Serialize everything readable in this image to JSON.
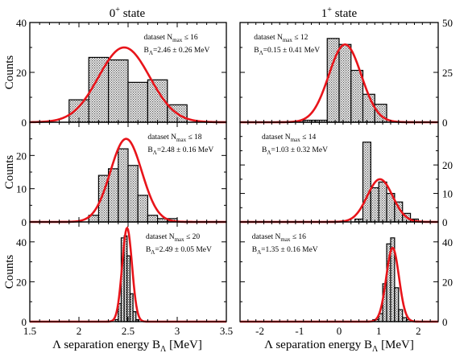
{
  "colors": {
    "fit_curve": "#e8141a",
    "bar_stroke": "#000000",
    "bar_fill": "#d9d9d9",
    "frame": "#000000"
  },
  "columns": [
    {
      "title": "0",
      "title_sup": "+",
      "title_rest": " state"
    },
    {
      "title": "1",
      "title_sup": "+",
      "title_rest": " state"
    }
  ],
  "shared": {
    "ylabel": "Counts",
    "xlabel_prefix": "Λ separation energy B",
    "xlabel_sub": "Λ",
    "xlabel_suffix": " [MeV]"
  },
  "chart_data": [
    {
      "id": "left-top",
      "type": "bar",
      "grid": false,
      "xlim": [
        1.5,
        3.5
      ],
      "ylim": [
        0,
        40
      ],
      "xticks": [
        "1.5",
        "2",
        "2.5",
        "3",
        "3.5"
      ],
      "xtick_values": [
        1.5,
        2.0,
        2.5,
        3.0,
        3.5
      ],
      "yticks": [
        "0",
        "20",
        "40"
      ],
      "ytick_values": [
        0,
        20,
        40
      ],
      "yaxis_side": "left",
      "bins": [
        {
          "x0": 1.9,
          "x1": 2.1,
          "count": 9
        },
        {
          "x0": 2.1,
          "x1": 2.3,
          "count": 26
        },
        {
          "x0": 2.3,
          "x1": 2.5,
          "count": 25
        },
        {
          "x0": 2.5,
          "x1": 2.7,
          "count": 16
        },
        {
          "x0": 2.7,
          "x1": 2.9,
          "count": 17
        },
        {
          "x0": 2.9,
          "x1": 3.1,
          "count": 7
        }
      ],
      "fit": {
        "mean": 2.46,
        "sigma": 0.26,
        "amplitude": 30
      },
      "annotation": {
        "line1": "dataset N",
        "line1_sub": "max",
        "line1_rest": " ≤ 16",
        "line2": "B",
        "line2_sub": "Λ",
        "line2_rest": "=2.46 ± 0.26 MeV"
      }
    },
    {
      "id": "right-top",
      "type": "bar",
      "grid": false,
      "xlim": [
        -2.5,
        2.5
      ],
      "ylim": [
        0,
        50
      ],
      "xticks": [
        "-2",
        "-1",
        "0",
        "1",
        "2"
      ],
      "xtick_values": [
        -2,
        -1,
        0,
        1,
        2
      ],
      "yticks": [
        "0",
        "25",
        "50"
      ],
      "ytick_values": [
        0,
        25,
        50
      ],
      "yaxis_side": "right",
      "bins": [
        {
          "x0": -1.0,
          "x1": -0.6,
          "count": 1
        },
        {
          "x0": -0.6,
          "x1": -0.3,
          "count": 1
        },
        {
          "x0": -0.3,
          "x1": 0.0,
          "count": 42
        },
        {
          "x0": 0.0,
          "x1": 0.3,
          "count": 39
        },
        {
          "x0": 0.3,
          "x1": 0.6,
          "count": 26
        },
        {
          "x0": 0.6,
          "x1": 0.9,
          "count": 14
        },
        {
          "x0": 0.9,
          "x1": 1.2,
          "count": 9
        }
      ],
      "fit": {
        "mean": 0.15,
        "sigma": 0.41,
        "amplitude": 39
      },
      "annotation": {
        "line1": "dataset N",
        "line1_sub": "max",
        "line1_rest": " ≤ 12",
        "line2": "B",
        "line2_sub": "Λ",
        "line2_rest": "=0.15 ± 0.41 MeV"
      }
    },
    {
      "id": "left-middle",
      "type": "bar",
      "grid": false,
      "xlim": [
        1.5,
        3.5
      ],
      "ylim": [
        0,
        30
      ],
      "xticks": [
        "1.5",
        "2",
        "2.5",
        "3",
        "3.5"
      ],
      "xtick_values": [
        1.5,
        2.0,
        2.5,
        3.0,
        3.5
      ],
      "yticks": [
        "0",
        "10",
        "20"
      ],
      "ytick_values": [
        0,
        10,
        20
      ],
      "yaxis_side": "left",
      "bins": [
        {
          "x0": 2.1,
          "x1": 2.2,
          "count": 2
        },
        {
          "x0": 2.2,
          "x1": 2.3,
          "count": 14
        },
        {
          "x0": 2.3,
          "x1": 2.4,
          "count": 16
        },
        {
          "x0": 2.4,
          "x1": 2.5,
          "count": 22
        },
        {
          "x0": 2.5,
          "x1": 2.6,
          "count": 17
        },
        {
          "x0": 2.6,
          "x1": 2.7,
          "count": 8
        },
        {
          "x0": 2.7,
          "x1": 2.8,
          "count": 2
        },
        {
          "x0": 2.8,
          "x1": 2.9,
          "count": 1
        },
        {
          "x0": 2.9,
          "x1": 3.0,
          "count": 1
        }
      ],
      "fit": {
        "mean": 2.48,
        "sigma": 0.16,
        "amplitude": 25
      },
      "annotation": {
        "line1": "dataset N",
        "line1_sub": "max",
        "line1_rest": " ≤ 18",
        "line2": "B",
        "line2_sub": "Λ",
        "line2_rest": "=2.48 ± 0.16 MeV"
      }
    },
    {
      "id": "right-middle",
      "type": "bar",
      "grid": false,
      "xlim": [
        -2.5,
        2.5
      ],
      "ylim": [
        0,
        35
      ],
      "xticks": [
        "-2",
        "-1",
        "0",
        "1",
        "2"
      ],
      "xtick_values": [
        -2,
        -1,
        0,
        1,
        2
      ],
      "yticks": [
        "0",
        "10",
        "20"
      ],
      "ytick_values": [
        0,
        10,
        20
      ],
      "yaxis_side": "right",
      "bins": [
        {
          "x0": 0.4,
          "x1": 0.6,
          "count": 1
        },
        {
          "x0": 0.6,
          "x1": 0.8,
          "count": 28
        },
        {
          "x0": 0.8,
          "x1": 1.0,
          "count": 12
        },
        {
          "x0": 1.0,
          "x1": 1.2,
          "count": 14
        },
        {
          "x0": 1.2,
          "x1": 1.4,
          "count": 10
        },
        {
          "x0": 1.4,
          "x1": 1.6,
          "count": 7
        },
        {
          "x0": 1.6,
          "x1": 1.8,
          "count": 3
        },
        {
          "x0": 1.8,
          "x1": 2.0,
          "count": 1
        }
      ],
      "fit": {
        "mean": 1.03,
        "sigma": 0.32,
        "amplitude": 15
      },
      "annotation": {
        "line1": "dataset N",
        "line1_sub": "max",
        "line1_rest": " ≤ 14",
        "line2": "B",
        "line2_sub": "Λ",
        "line2_rest": "=1.03 ± 0.32 MeV"
      }
    },
    {
      "id": "left-bottom",
      "type": "bar",
      "grid": false,
      "xlim": [
        1.5,
        3.5
      ],
      "ylim": [
        0,
        50
      ],
      "xticks": [
        "1.5",
        "2",
        "2.5",
        "3",
        "3.5"
      ],
      "xtick_values": [
        1.5,
        2.0,
        2.5,
        3.0,
        3.5
      ],
      "yticks": [
        "0",
        "20",
        "40"
      ],
      "ytick_values": [
        0,
        20,
        40
      ],
      "yaxis_side": "left",
      "bins": [
        {
          "x0": 2.37,
          "x1": 2.4,
          "count": 1
        },
        {
          "x0": 2.4,
          "x1": 2.43,
          "count": 9
        },
        {
          "x0": 2.43,
          "x1": 2.46,
          "count": 42
        },
        {
          "x0": 2.46,
          "x1": 2.49,
          "count": 43
        },
        {
          "x0": 2.49,
          "x1": 2.52,
          "count": 33
        },
        {
          "x0": 2.52,
          "x1": 2.55,
          "count": 14
        },
        {
          "x0": 2.55,
          "x1": 2.58,
          "count": 5
        },
        {
          "x0": 2.58,
          "x1": 2.61,
          "count": 1
        }
      ],
      "fit": {
        "mean": 2.49,
        "sigma": 0.05,
        "amplitude": 47
      },
      "annotation": {
        "line1": "dataset N",
        "line1_sub": "max",
        "line1_rest": " ≤ 20",
        "line2": "B",
        "line2_sub": "Λ",
        "line2_rest": "=2.49 ± 0.05 MeV"
      }
    },
    {
      "id": "right-bottom",
      "type": "bar",
      "grid": false,
      "xlim": [
        -2.5,
        2.5
      ],
      "ylim": [
        0,
        50
      ],
      "xticks": [
        "-2",
        "-1",
        "0",
        "1",
        "2"
      ],
      "xtick_values": [
        -2,
        -1,
        0,
        1,
        2
      ],
      "yticks": [
        "0",
        "20",
        "40"
      ],
      "ytick_values": [
        0,
        20,
        40
      ],
      "yaxis_side": "right",
      "bins": [
        {
          "x0": 0.85,
          "x1": 1.0,
          "count": 1
        },
        {
          "x0": 1.0,
          "x1": 1.1,
          "count": 4
        },
        {
          "x0": 1.1,
          "x1": 1.2,
          "count": 19
        },
        {
          "x0": 1.2,
          "x1": 1.3,
          "count": 39
        },
        {
          "x0": 1.3,
          "x1": 1.4,
          "count": 42
        },
        {
          "x0": 1.4,
          "x1": 1.5,
          "count": 17
        },
        {
          "x0": 1.5,
          "x1": 1.6,
          "count": 6
        },
        {
          "x0": 1.6,
          "x1": 1.7,
          "count": 2
        },
        {
          "x0": 1.7,
          "x1": 1.8,
          "count": 1
        }
      ],
      "fit": {
        "mean": 1.35,
        "sigma": 0.16,
        "amplitude": 37
      },
      "annotation": {
        "line1": "dataset N",
        "line1_sub": "max",
        "line1_rest": " ≤ 16",
        "line2": "B",
        "line2_sub": "Λ",
        "line2_rest": "=1.35 ± 0.16 MeV"
      }
    }
  ]
}
